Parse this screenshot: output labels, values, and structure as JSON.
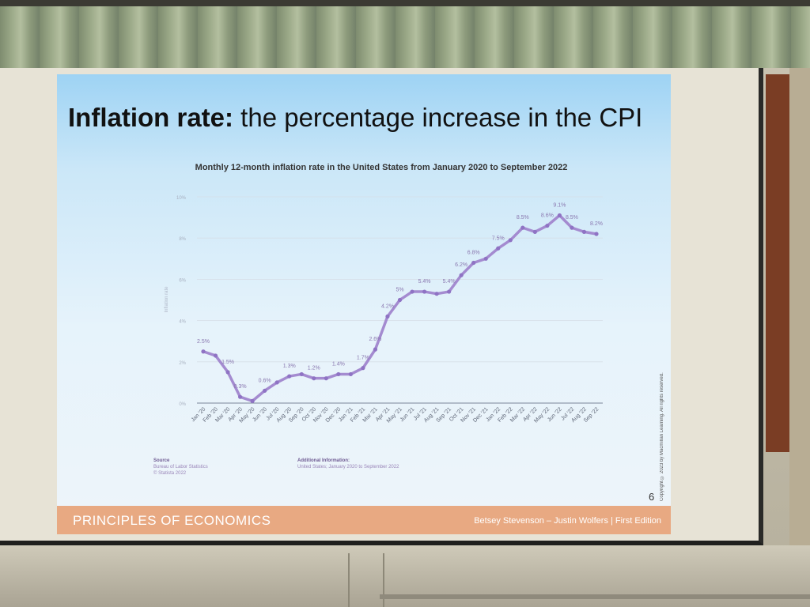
{
  "slide": {
    "title_bold": "Inflation rate:",
    "title_rest": " the percentage increase in the CPI",
    "page_number": "6",
    "footer_left": "PRINCIPLES OF ECONOMICS",
    "footer_right": "Betsey Stevenson – Justin Wolfers | First Edition",
    "source_heading": "Source",
    "source_lines": [
      "Bureau of Labor Statistics",
      "© Statista 2022"
    ],
    "info_heading": "Additional Information:",
    "info_line": "United States; January 2020 to September 2022",
    "copyright": "Copyright © 2023 by Macmillan Learning. All rights reserved."
  },
  "chart_data": {
    "type": "line",
    "title": "Monthly 12-month inflation rate in the United States from January 2020 to September 2022",
    "ylabel": "Inflation rate",
    "ylim": [
      0,
      10
    ],
    "y_ticks": [
      "0%",
      "2%",
      "4%",
      "6%",
      "8%",
      "10%"
    ],
    "categories": [
      "Jan '20",
      "Feb '20",
      "Mar '20",
      "Apr '20",
      "May '20",
      "Jun '20",
      "Jul '20",
      "Aug '20",
      "Sep '20",
      "Oct '20",
      "Nov '20",
      "Dec '20",
      "Jan '21",
      "Feb '21",
      "Mar '21",
      "Apr '21",
      "May '21",
      "Jun '21",
      "Jul '21",
      "Aug '21",
      "Sep '21",
      "Oct '21",
      "Nov '21",
      "Dec '21",
      "Jan '22",
      "Feb '22",
      "Mar '22",
      "Apr '22",
      "May '22",
      "Jun '22",
      "Jul '22",
      "Aug '22",
      "Sep '22"
    ],
    "values": [
      2.5,
      2.3,
      1.5,
      0.3,
      0.1,
      0.6,
      1.0,
      1.3,
      1.4,
      1.2,
      1.2,
      1.4,
      1.4,
      1.7,
      2.6,
      4.2,
      5.0,
      5.4,
      5.4,
      5.3,
      5.4,
      6.2,
      6.8,
      7.0,
      7.5,
      7.9,
      8.5,
      8.3,
      8.6,
      9.1,
      8.5,
      8.3,
      8.2
    ],
    "data_labels": {
      "0": "2.5%",
      "2": "1.5%",
      "3": "0.3%",
      "5": "0.6%",
      "7": "1.3%",
      "9": "1.2%",
      "11": "1.4%",
      "13": "1.7%",
      "14": "2.6%",
      "15": "4.2%",
      "16": "5%",
      "18": "5.4%",
      "20": "5.4%",
      "21": "6.2%",
      "22": "6.8%",
      "24": "7.5%",
      "26": "8.5%",
      "28": "8.6%",
      "29": "9.1%",
      "30": "8.5%",
      "32": "8.2%"
    },
    "series_color": "#a48bd0",
    "grid": true
  }
}
